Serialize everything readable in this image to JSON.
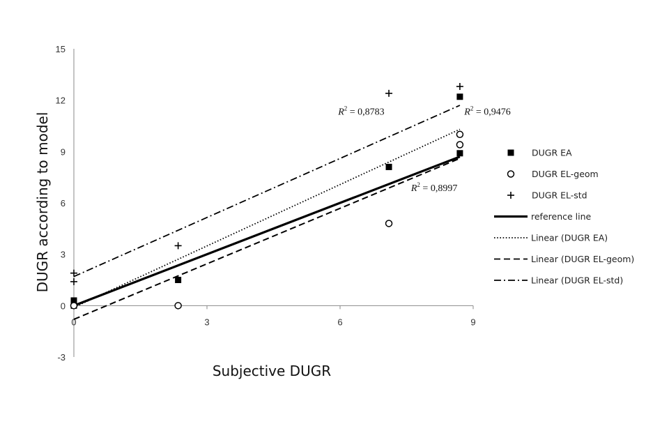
{
  "chart_data": {
    "type": "scatter",
    "title": "",
    "xlabel": "Subjective DUGR",
    "ylabel": "DUGR according to model",
    "xlim": [
      0,
      9
    ],
    "ylim": [
      -3,
      15
    ],
    "xticks": [
      0,
      3,
      6,
      9
    ],
    "yticks": [
      -3,
      0,
      3,
      6,
      9,
      12,
      15
    ],
    "grid": false,
    "legend_position": "right",
    "series": [
      {
        "name": "DUGR EA",
        "kind": "scatter",
        "marker": "square",
        "x": [
          0,
          0,
          2.35,
          7.1,
          8.7,
          8.7
        ],
        "y": [
          0.3,
          0,
          1.5,
          8.1,
          12.2,
          8.9
        ]
      },
      {
        "name": "DUGR EL-geom",
        "kind": "scatter",
        "marker": "circle",
        "x": [
          0,
          2.35,
          7.1,
          8.7,
          8.7
        ],
        "y": [
          0,
          0,
          4.8,
          10,
          9.4
        ]
      },
      {
        "name": "DUGR EL-std",
        "kind": "scatter",
        "marker": "plus",
        "x": [
          0,
          0,
          2.35,
          7.1,
          8.7
        ],
        "y": [
          1.9,
          1.4,
          3.5,
          12.4,
          12.8
        ]
      },
      {
        "name": "reference line",
        "kind": "line",
        "style": "solid",
        "x": [
          0,
          8.7
        ],
        "y": [
          0,
          8.7
        ]
      },
      {
        "name": "Linear (DUGR EA)",
        "kind": "line",
        "style": "dotted",
        "x": [
          0,
          8.7
        ],
        "y": [
          -0.1,
          10.3
        ]
      },
      {
        "name": "Linear (DUGR EL-geom)",
        "kind": "line",
        "style": "dashed",
        "x": [
          0,
          8.7
        ],
        "y": [
          -0.8,
          8.6
        ]
      },
      {
        "name": "Linear (DUGR EL-std)",
        "kind": "line",
        "style": "dashdot",
        "x": [
          0,
          8.7
        ],
        "y": [
          1.7,
          11.7
        ]
      }
    ],
    "annotations": [
      {
        "base": "R",
        "sup": "2",
        "value": " = 0,8783",
        "x": 7.0,
        "y": 11.15,
        "anchor": "end"
      },
      {
        "base": "R",
        "sup": "2",
        "value": " = 0,9476",
        "x": 8.8,
        "y": 11.15,
        "anchor": "start"
      },
      {
        "base": "R",
        "sup": "2",
        "value": " = 0,8997",
        "x": 7.6,
        "y": 6.7,
        "anchor": "start"
      }
    ]
  }
}
